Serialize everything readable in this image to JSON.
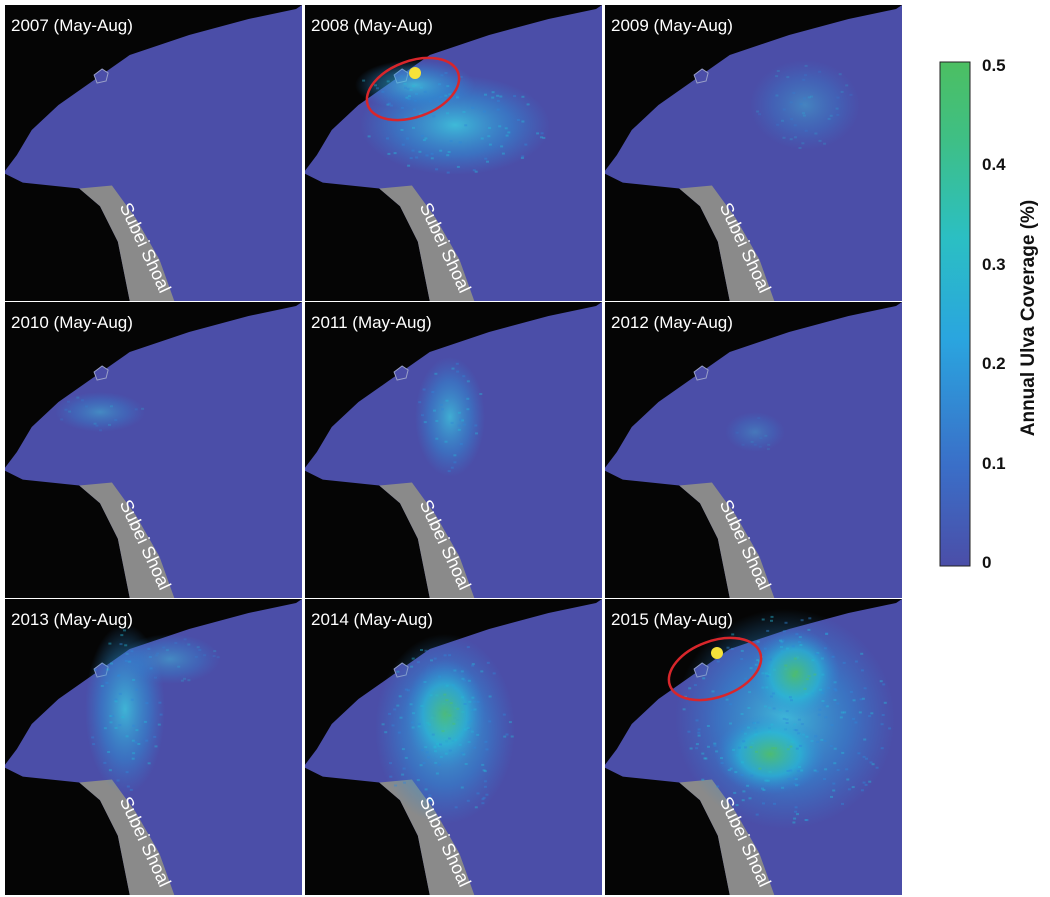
{
  "colors": {
    "sea": "#4b4ea8",
    "land": "#050505",
    "shoal": "#8a8a8a",
    "bloom_low": "#2f87d8",
    "bloom_mid": "#27b9d6",
    "bloom_high": "#4fc06a",
    "marker_circle": "#d8262b",
    "marker_dot": "#f6e23a"
  },
  "panels": [
    {
      "title": "2007 (May-Aug)",
      "shoal_label": "Subei Shoal",
      "coverage_level": 0.0,
      "highlight": false
    },
    {
      "title": "2008 (May-Aug)",
      "shoal_label": "Subei Shoal",
      "coverage_level": 0.25,
      "highlight": true
    },
    {
      "title": "2009 (May-Aug)",
      "shoal_label": "Subei Shoal",
      "coverage_level": 0.1,
      "highlight": false
    },
    {
      "title": "2010 (May-Aug)",
      "shoal_label": "Subei Shoal",
      "coverage_level": 0.08,
      "highlight": false
    },
    {
      "title": "2011 (May-Aug)",
      "shoal_label": "Subei Shoal",
      "coverage_level": 0.15,
      "highlight": false
    },
    {
      "title": "2012 (May-Aug)",
      "shoal_label": "Subei Shoal",
      "coverage_level": 0.05,
      "highlight": false
    },
    {
      "title": "2013 (May-Aug)",
      "shoal_label": "Subei Shoal",
      "coverage_level": 0.22,
      "highlight": false
    },
    {
      "title": "2014 (May-Aug)",
      "shoal_label": "Subei Shoal",
      "coverage_level": 0.35,
      "highlight": false
    },
    {
      "title": "2015 (May-Aug)",
      "shoal_label": "Subei Shoal",
      "coverage_level": 0.45,
      "highlight": true
    }
  ],
  "colorbar": {
    "label": "Annual Ulva Coverage (%)",
    "ticks": [
      "0.5",
      "0.4",
      "0.3",
      "0.2",
      "0.1",
      "0"
    ],
    "range": [
      0,
      0.5
    ],
    "stops": [
      "#4b4ea8",
      "#3a6fc8",
      "#2aa5df",
      "#2bbfc3",
      "#3fbf84",
      "#4cbf62"
    ]
  }
}
